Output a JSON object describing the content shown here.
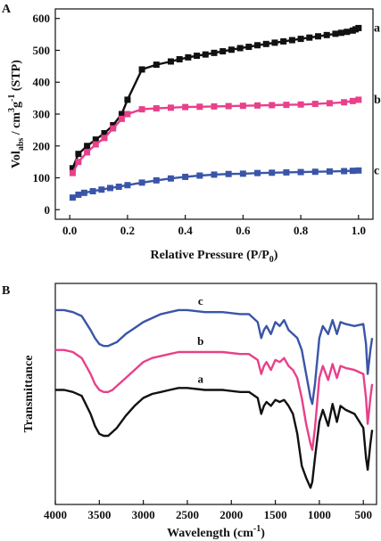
{
  "chart_data": [
    {
      "panel_label": "A",
      "type": "line",
      "xlabel_main": "Relative Pressure (P/P",
      "xlabel_sub": "0",
      "xlabel_tail": ")",
      "ylabel_parts": [
        "Vol",
        "abs",
        " / cm",
        "3",
        "g",
        "-1",
        "  (STP)"
      ],
      "xlim": [
        -0.05,
        1.05
      ],
      "ylim": [
        -30,
        630
      ],
      "xticks": [
        0.0,
        0.2,
        0.4,
        0.6,
        0.8,
        1.0
      ],
      "xtick_labels": [
        "0.0",
        "0.2",
        "0.4",
        "0.6",
        "0.8",
        "1.0"
      ],
      "yticks": [
        0,
        100,
        200,
        300,
        400,
        500,
        600
      ],
      "ytick_labels": [
        "0",
        "100",
        "200",
        "300",
        "400",
        "500",
        "600"
      ],
      "grid": false,
      "series": [
        {
          "name": "a",
          "color": "#111111",
          "marker": "square",
          "x": [
            0.01,
            0.03,
            0.06,
            0.09,
            0.12,
            0.15,
            0.18,
            0.2,
            0.25,
            0.3,
            0.35,
            0.38,
            0.41,
            0.44,
            0.47,
            0.5,
            0.53,
            0.56,
            0.59,
            0.62,
            0.65,
            0.68,
            0.71,
            0.74,
            0.77,
            0.8,
            0.83,
            0.86,
            0.89,
            0.92,
            0.94,
            0.96,
            0.98,
            0.99,
            1.0
          ],
          "y": [
            130,
            175,
            200,
            220,
            240,
            265,
            300,
            345,
            440,
            455,
            465,
            472,
            478,
            483,
            487,
            492,
            497,
            502,
            507,
            511,
            516,
            520,
            524,
            528,
            532,
            536,
            540,
            544,
            548,
            552,
            555,
            558,
            562,
            566,
            570
          ]
        },
        {
          "name": "b",
          "color": "#e8408a",
          "marker": "square",
          "x": [
            0.01,
            0.03,
            0.06,
            0.09,
            0.12,
            0.15,
            0.18,
            0.2,
            0.25,
            0.3,
            0.35,
            0.4,
            0.45,
            0.5,
            0.55,
            0.6,
            0.65,
            0.7,
            0.75,
            0.8,
            0.85,
            0.9,
            0.95,
            0.98,
            1.0
          ],
          "y": [
            115,
            150,
            180,
            205,
            225,
            255,
            285,
            300,
            315,
            318,
            320,
            322,
            323,
            324,
            325,
            326,
            327,
            328,
            329,
            330,
            332,
            334,
            337,
            341,
            345
          ]
        },
        {
          "name": "c",
          "color": "#3a55a8",
          "marker": "square",
          "x": [
            0.01,
            0.03,
            0.05,
            0.08,
            0.11,
            0.14,
            0.17,
            0.2,
            0.25,
            0.3,
            0.35,
            0.4,
            0.45,
            0.5,
            0.55,
            0.6,
            0.65,
            0.7,
            0.75,
            0.8,
            0.85,
            0.9,
            0.95,
            0.98,
            1.0
          ],
          "y": [
            38,
            47,
            53,
            58,
            63,
            68,
            72,
            77,
            85,
            92,
            98,
            103,
            107,
            110,
            112,
            113,
            115,
            116,
            117,
            118,
            119,
            120,
            121,
            122,
            123
          ]
        }
      ]
    },
    {
      "panel_label": "B",
      "type": "line",
      "xlabel_main": "Wavelength (cm",
      "xlabel_sup": "-1",
      "xlabel_tail": ")",
      "ylabel": "Transmittance",
      "xlim": [
        4000,
        350
      ],
      "ylim": [
        0,
        100
      ],
      "xticks": [
        4000,
        3500,
        3000,
        2500,
        2000,
        1500,
        1000,
        500
      ],
      "xtick_labels": [
        "4000",
        "3500",
        "3000",
        "2500",
        "2000",
        "1500",
        "1000",
        "500"
      ],
      "y_ticklabels_shown": false,
      "grid": false,
      "series": [
        {
          "name": "c",
          "color": "#3a55a8",
          "x": [
            4000,
            3900,
            3800,
            3700,
            3600,
            3550,
            3500,
            3450,
            3400,
            3350,
            3300,
            3200,
            3100,
            3000,
            2900,
            2800,
            2700,
            2600,
            2500,
            2300,
            2100,
            1900,
            1800,
            1700,
            1660,
            1630,
            1600,
            1550,
            1500,
            1450,
            1400,
            1350,
            1300,
            1250,
            1200,
            1150,
            1100,
            1080,
            1050,
            1000,
            960,
            900,
            850,
            800,
            760,
            700,
            600,
            500,
            470,
            450,
            420,
            400
          ],
          "y": [
            92,
            92,
            91,
            89,
            82,
            78,
            75,
            74,
            74,
            75,
            76,
            80,
            83,
            86,
            88,
            90,
            91,
            92,
            92,
            91,
            91,
            90,
            90,
            86,
            78,
            82,
            84,
            80,
            86,
            84,
            87,
            82,
            80,
            78,
            72,
            60,
            48,
            45,
            55,
            78,
            84,
            80,
            87,
            80,
            86,
            85,
            84,
            85,
            75,
            60,
            72,
            78
          ]
        },
        {
          "name": "b",
          "color": "#e8408a",
          "x": [
            4000,
            3900,
            3800,
            3700,
            3600,
            3550,
            3500,
            3450,
            3400,
            3350,
            3300,
            3200,
            3100,
            3000,
            2900,
            2800,
            2700,
            2600,
            2500,
            2300,
            2100,
            1900,
            1800,
            1700,
            1660,
            1630,
            1600,
            1550,
            1500,
            1450,
            1400,
            1350,
            1300,
            1250,
            1200,
            1150,
            1100,
            1080,
            1050,
            1000,
            960,
            900,
            850,
            800,
            760,
            700,
            600,
            500,
            470,
            450,
            420,
            400
          ],
          "y": [
            72,
            72,
            71,
            68,
            60,
            55,
            52,
            51,
            51,
            52,
            54,
            58,
            62,
            66,
            68,
            69,
            70,
            71,
            71,
            71,
            71,
            70,
            70,
            67,
            60,
            64,
            66,
            62,
            67,
            66,
            68,
            64,
            62,
            58,
            48,
            35,
            25,
            22,
            33,
            58,
            64,
            57,
            65,
            58,
            64,
            63,
            62,
            60,
            48,
            35,
            48,
            55
          ]
        },
        {
          "name": "a",
          "color": "#111111",
          "x": [
            4000,
            3900,
            3800,
            3700,
            3600,
            3550,
            3500,
            3450,
            3400,
            3350,
            3300,
            3200,
            3100,
            3000,
            2900,
            2800,
            2700,
            2600,
            2500,
            2300,
            2100,
            1900,
            1800,
            1700,
            1660,
            1630,
            1600,
            1550,
            1500,
            1450,
            1400,
            1350,
            1300,
            1250,
            1200,
            1150,
            1100,
            1080,
            1050,
            1000,
            960,
            900,
            850,
            800,
            760,
            700,
            600,
            500,
            470,
            450,
            420,
            400
          ],
          "y": [
            52,
            52,
            51,
            49,
            40,
            34,
            30,
            29,
            29,
            31,
            33,
            39,
            44,
            48,
            50,
            51,
            52,
            53,
            53,
            52,
            52,
            51,
            51,
            48,
            40,
            44,
            46,
            44,
            47,
            46,
            47,
            44,
            40,
            30,
            14,
            8,
            3,
            6,
            18,
            36,
            42,
            34,
            45,
            36,
            44,
            42,
            40,
            33,
            18,
            12,
            25,
            32
          ]
        }
      ]
    }
  ]
}
